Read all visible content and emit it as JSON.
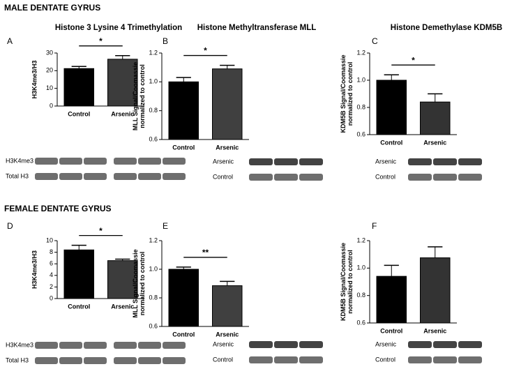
{
  "male_heading": "MALE DENTATE GYRUS",
  "female_heading": "FEMALE DENTATE GYRUS",
  "chart_data": [
    {
      "type": "bar",
      "panel": "A",
      "title": "Histone 3 Lysine 4 Trimethylation",
      "ylabel": "H3K4me3/H3",
      "categories": [
        "Control",
        "Arsenic"
      ],
      "values": [
        21.2,
        26.5
      ],
      "errors": [
        1.2,
        2.0
      ],
      "colors": [
        "#000000",
        "#3c3c3c"
      ],
      "ylim": [
        0,
        30
      ],
      "yticks": [
        0,
        10,
        20,
        30
      ],
      "significance": "*",
      "blot_labels": [
        "H3K4me3",
        "Total H3"
      ]
    },
    {
      "type": "bar",
      "panel": "B",
      "title": "Histone Methyltransferase MLL",
      "ylabel": "MLL Signal/Coomassie normalized to control",
      "categories": [
        "Control",
        "Arsenic"
      ],
      "values": [
        1.0,
        1.09
      ],
      "errors": [
        0.03,
        0.025
      ],
      "colors": [
        "#000000",
        "#404040"
      ],
      "ylim": [
        0.6,
        1.2
      ],
      "yticks": [
        0.6,
        0.8,
        {
          "value": 1,
          "label": "1.0"
        },
        1.2
      ],
      "significance": "*",
      "blot_labels": [
        "Arsenic",
        "Control"
      ]
    },
    {
      "type": "bar",
      "panel": "C",
      "title": "Histone Demethylase KDM5B",
      "ylabel": "KDM5B Signal/Coomassie normalized to control",
      "categories": [
        "Control",
        "Arsenic"
      ],
      "values": [
        1.0,
        0.84
      ],
      "errors": [
        0.04,
        0.06
      ],
      "colors": [
        "#000000",
        "#333333"
      ],
      "ylim": [
        0.6,
        1.2
      ],
      "yticks": [
        0.6,
        0.8,
        {
          "value": 1,
          "label": "1.0"
        },
        1.2
      ],
      "significance": "*",
      "blot_labels": [
        "Arsenic",
        "Control"
      ]
    },
    {
      "type": "bar",
      "panel": "D",
      "ylabel": "H3K4me3/H3",
      "categories": [
        "Control",
        "Arsenic"
      ],
      "values": [
        8.4,
        6.55
      ],
      "errors": [
        0.8,
        0.25
      ],
      "colors": [
        "#000000",
        "#3c3c3c"
      ],
      "ylim": [
        0,
        10
      ],
      "yticks": [
        0,
        2,
        4,
        6,
        8,
        10
      ],
      "significance": "*",
      "blot_labels": [
        "H3K4me3",
        "Total H3"
      ]
    },
    {
      "type": "bar",
      "panel": "E",
      "ylabel": "MLL Signal/Coomassie normalized to control",
      "categories": [
        "Control",
        "Arsenic"
      ],
      "values": [
        1.0,
        0.885
      ],
      "errors": [
        0.015,
        0.03
      ],
      "colors": [
        "#000000",
        "#404040"
      ],
      "ylim": [
        0.6,
        1.2
      ],
      "yticks": [
        0.6,
        0.8,
        {
          "value": 1,
          "label": "1.0"
        },
        1.2
      ],
      "significance": "**",
      "blot_labels": [
        "Arsenic",
        "Control"
      ]
    },
    {
      "type": "bar",
      "panel": "F",
      "ylabel": "KDM5B Signal/Coomassie normalized to control",
      "categories": [
        "Control",
        "Arsenic"
      ],
      "values": [
        0.94,
        1.075
      ],
      "errors": [
        0.08,
        0.08
      ],
      "colors": [
        "#000000",
        "#333333"
      ],
      "ylim": [
        0.6,
        1.2
      ],
      "yticks": [
        0.6,
        0.8,
        {
          "value": 1,
          "label": "1.0"
        },
        1.2
      ],
      "blot_labels": [
        "Arsenic",
        "Control"
      ]
    }
  ]
}
